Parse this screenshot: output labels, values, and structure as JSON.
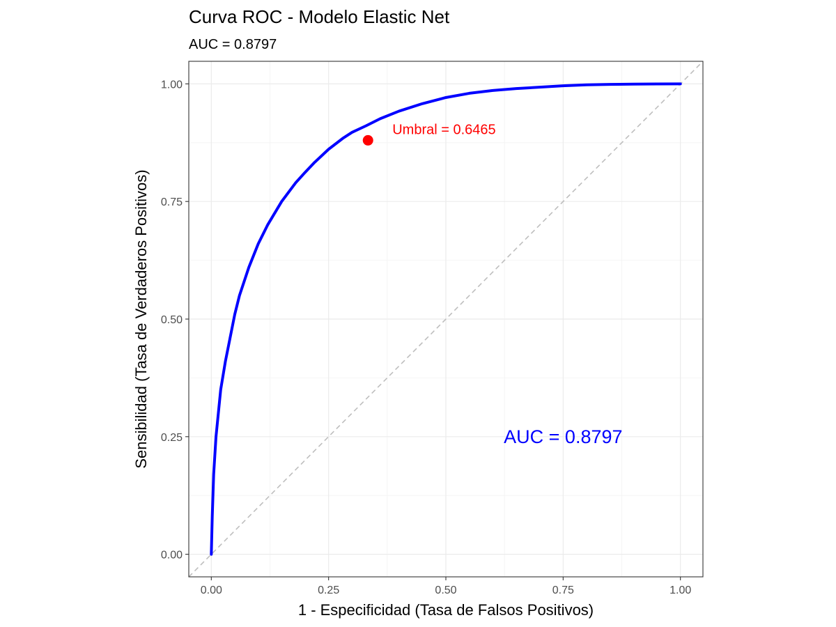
{
  "chart_data": {
    "type": "line",
    "title": "Curva ROC - Modelo Elastic Net",
    "subtitle": "AUC = 0.8797",
    "xlabel": "1 - Especificidad (Tasa de Falsos Positivos)",
    "ylabel": "Sensibilidad (Tasa de Verdaderos Positivos)",
    "xlim": [
      -0.048,
      1.048
    ],
    "ylim": [
      -0.048,
      1.048
    ],
    "x_ticks": [
      0,
      0.25,
      0.5,
      0.75,
      1
    ],
    "y_ticks": [
      0,
      0.25,
      0.5,
      0.75,
      1
    ],
    "x_tick_labels": [
      "0.00",
      "0.25",
      "0.50",
      "0.75",
      "1.00"
    ],
    "y_tick_labels": [
      "0.00",
      "0.25",
      "0.50",
      "0.75",
      "1.00"
    ],
    "grid": true,
    "legend": "none",
    "series": [
      {
        "color": "#0000ff",
        "x": [
          0,
          0.002,
          0.005,
          0.01,
          0.015,
          0.02,
          0.03,
          0.04,
          0.05,
          0.06,
          0.07,
          0.08,
          0.1,
          0.12,
          0.15,
          0.18,
          0.2,
          0.22,
          0.25,
          0.28,
          0.3,
          0.33,
          0.36,
          0.4,
          0.45,
          0.5,
          0.55,
          0.6,
          0.65,
          0.7,
          0.75,
          0.8,
          0.85,
          0.9,
          0.95,
          1
        ],
        "y": [
          0,
          0.08,
          0.17,
          0.25,
          0.3,
          0.35,
          0.41,
          0.46,
          0.51,
          0.55,
          0.58,
          0.61,
          0.66,
          0.7,
          0.75,
          0.79,
          0.812,
          0.833,
          0.861,
          0.884,
          0.897,
          0.911,
          0.926,
          0.942,
          0.958,
          0.971,
          0.98,
          0.986,
          0.99,
          0.993,
          0.996,
          0.998,
          0.999,
          0.9995,
          0.9998,
          1
        ]
      }
    ],
    "reference_line": {
      "color": "#bebebe",
      "style": "dashed",
      "x": [
        -0.048,
        1.048
      ],
      "y": [
        -0.048,
        1.048
      ]
    },
    "optimal_point": {
      "x": 0.334,
      "y": 0.88,
      "color": "#ff0000",
      "label": "Umbral = 0.6465"
    },
    "annotation": {
      "text": "AUC = 0.8797",
      "x": 0.75,
      "y": 0.25,
      "color": "#0000ff"
    }
  }
}
